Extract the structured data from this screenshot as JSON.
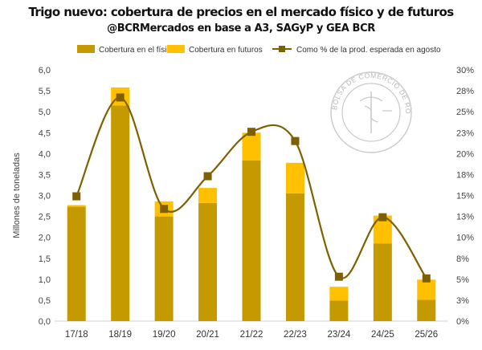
{
  "chart_data": {
    "type": "bar",
    "title": "Trigo nuevo: cobertura de precios en el mercado físico y de futuros",
    "subtitle": "@BCRMercados en base a A3, SAGyP y GEA BCR",
    "ylabel": "Millones de toneladas",
    "categories": [
      "17/18",
      "18/19",
      "19/20",
      "20/21",
      "21/22",
      "22/23",
      "23/24",
      "24/25",
      "25/26"
    ],
    "ylim": [
      0,
      6
    ],
    "ylim_right": [
      0,
      0.3
    ],
    "y_ticks": [
      "0,0",
      "0,5",
      "1,0",
      "1,5",
      "2,0",
      "2,5",
      "3,0",
      "3,5",
      "4,0",
      "4,5",
      "5,0",
      "5,5",
      "6,0"
    ],
    "y2_ticks": [
      "0%",
      "3%",
      "5%",
      "8%",
      "10%",
      "13%",
      "15%",
      "18%",
      "20%",
      "23%",
      "25%",
      "28%",
      "30%"
    ],
    "stacked": true,
    "series": [
      {
        "name": "Cobertura en el físico",
        "kind": "bar",
        "color": "#c49a00",
        "values": [
          2.73,
          5.15,
          2.5,
          2.82,
          3.84,
          3.05,
          0.49,
          1.85,
          0.51
        ]
      },
      {
        "name": "Cobertura en futuros",
        "kind": "bar",
        "color": "#ffc000",
        "values": [
          0.04,
          0.43,
          0.36,
          0.36,
          0.66,
          0.73,
          0.33,
          0.67,
          0.48
        ]
      },
      {
        "name": "Como % de la prod. esperada en agosto",
        "kind": "line",
        "axis": "right",
        "color": "#7f6000",
        "marker": "square",
        "values": [
          0.149,
          0.267,
          0.134,
          0.173,
          0.226,
          0.215,
          0.053,
          0.124,
          0.051
        ]
      }
    ],
    "legend_position": "top",
    "grid": false
  },
  "watermark_text": "BOLSA DE COMERCIO DE ROSARIO"
}
